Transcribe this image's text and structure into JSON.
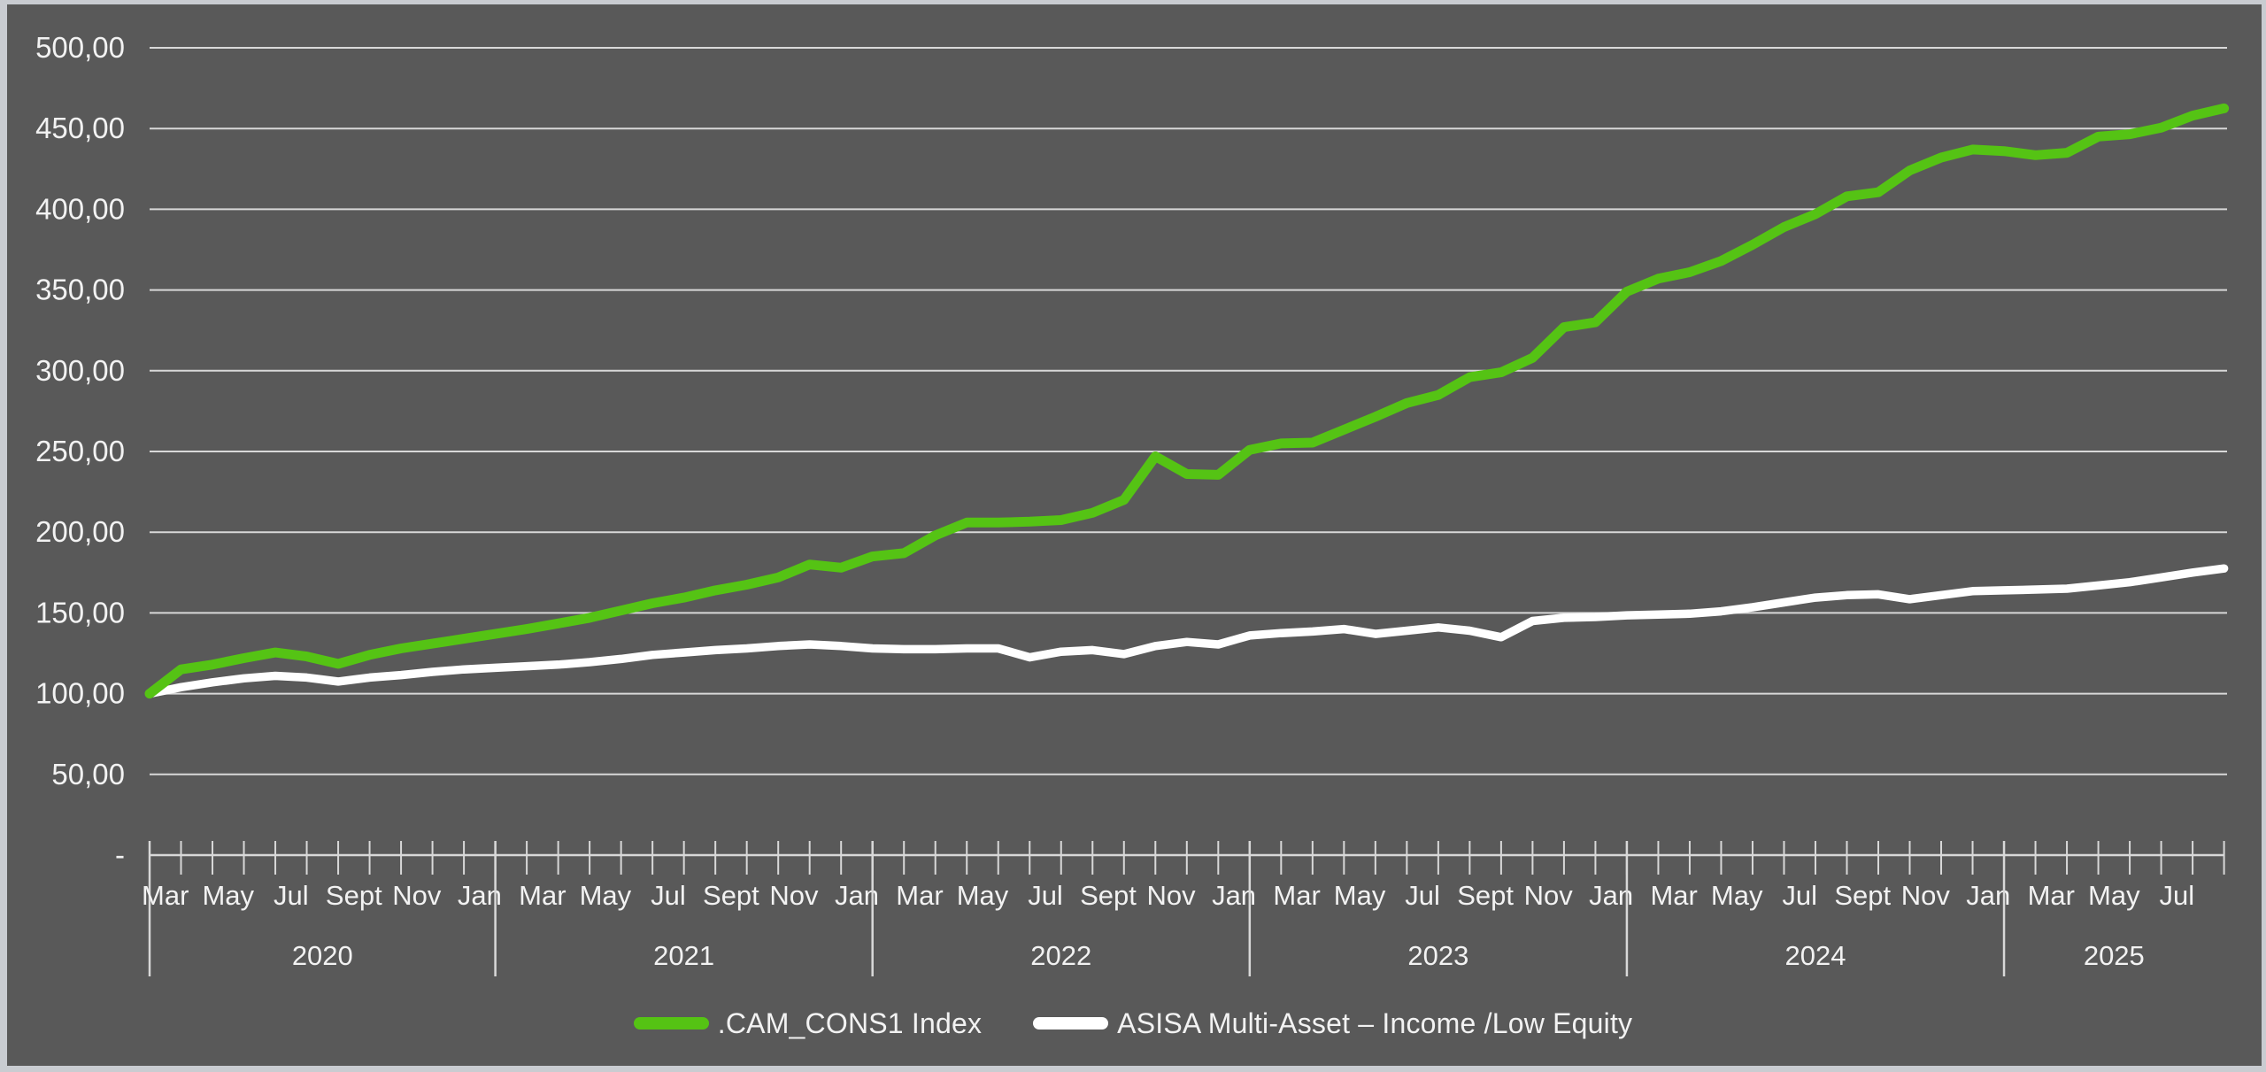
{
  "colors": {
    "background": "#595959",
    "frame": "#c9ccd1",
    "grid": "#d8d8d8",
    "axis": "#d8d8d8",
    "text": "#f2f2f2",
    "green_series": "#55c314",
    "white_series": "#ffffff"
  },
  "chart_data": {
    "type": "line",
    "title": "",
    "grid": true,
    "legend_position": "bottom",
    "y_axis": {
      "min": 0,
      "max": 500,
      "step": 50,
      "tick_labels": [
        "-",
        "50,00",
        "100,00",
        "150,00",
        "200,00",
        "250,00",
        "300,00",
        "350,00",
        "400,00",
        "450,00",
        "500,00"
      ]
    },
    "x_axis": {
      "unit": "month",
      "years": [
        {
          "label": "2020",
          "intervals": 11,
          "month_labels": [
            {
              "t": "Mar",
              "slot": 0
            },
            {
              "t": "May",
              "slot": 2
            },
            {
              "t": "Jul",
              "slot": 4
            },
            {
              "t": "Sept",
              "slot": 6
            },
            {
              "t": "Nov",
              "slot": 8
            },
            {
              "t": "Jan",
              "slot": 10
            }
          ]
        },
        {
          "label": "2021",
          "intervals": 12,
          "month_labels": [
            {
              "t": "Mar",
              "slot": 1
            },
            {
              "t": "May",
              "slot": 3
            },
            {
              "t": "Jul",
              "slot": 5
            },
            {
              "t": "Sept",
              "slot": 7
            },
            {
              "t": "Nov",
              "slot": 9
            },
            {
              "t": "Jan",
              "slot": 11
            }
          ]
        },
        {
          "label": "2022",
          "intervals": 12,
          "month_labels": [
            {
              "t": "Mar",
              "slot": 1
            },
            {
              "t": "May",
              "slot": 3
            },
            {
              "t": "Jul",
              "slot": 5
            },
            {
              "t": "Sept",
              "slot": 7
            },
            {
              "t": "Nov",
              "slot": 9
            },
            {
              "t": "Jan",
              "slot": 11
            }
          ]
        },
        {
          "label": "2023",
          "intervals": 12,
          "month_labels": [
            {
              "t": "Mar",
              "slot": 1
            },
            {
              "t": "May",
              "slot": 3
            },
            {
              "t": "Jul",
              "slot": 5
            },
            {
              "t": "Sept",
              "slot": 7
            },
            {
              "t": "Nov",
              "slot": 9
            },
            {
              "t": "Jan",
              "slot": 11
            }
          ]
        },
        {
          "label": "2024",
          "intervals": 12,
          "month_labels": [
            {
              "t": "Mar",
              "slot": 1
            },
            {
              "t": "May",
              "slot": 3
            },
            {
              "t": "Jul",
              "slot": 5
            },
            {
              "t": "Sept",
              "slot": 7
            },
            {
              "t": "Nov",
              "slot": 9
            },
            {
              "t": "Jan",
              "slot": 11
            }
          ]
        },
        {
          "label": "2025",
          "intervals": 7,
          "month_labels": [
            {
              "t": "Mar",
              "slot": 1
            },
            {
              "t": "May",
              "slot": 3
            },
            {
              "t": "Jul",
              "slot": 5
            }
          ]
        }
      ]
    },
    "series": [
      {
        "name": ".CAM_CONS1 Index",
        "color": "#55c314",
        "start": "Feb 2020",
        "values": [
          100,
          115,
          118,
          122,
          125.5,
          123,
          118.5,
          124,
          128,
          131,
          134,
          137,
          140,
          143.5,
          147,
          151.5,
          156,
          159.5,
          164,
          167.5,
          172,
          180,
          178,
          185,
          187,
          198,
          206,
          206,
          206.5,
          207.5,
          212,
          220,
          247,
          236,
          235.5,
          251,
          255,
          255.5,
          263.5,
          271.5,
          280,
          285,
          296,
          299,
          308,
          327,
          330,
          349,
          357,
          361,
          368,
          378,
          389,
          397,
          408,
          410.5,
          424,
          432,
          437,
          436,
          433.5,
          435,
          445,
          446.5,
          450.5,
          458,
          462.5
        ]
      },
      {
        "name": "ASISA  Multi-Asset – Income /Low Equity",
        "color": "#ffffff",
        "start": "Feb 2020",
        "values": [
          100,
          104,
          107,
          109.5,
          111,
          110,
          107.5,
          110,
          111.5,
          113.5,
          115,
          116,
          117,
          118,
          119.5,
          121.5,
          124,
          125.5,
          127,
          128,
          129.5,
          130.5,
          129.5,
          128,
          127.5,
          127.5,
          128,
          128,
          122.5,
          126,
          127,
          124.5,
          129.5,
          132,
          130.5,
          136,
          137.5,
          138.5,
          140,
          137,
          139,
          141,
          139,
          135,
          145,
          147,
          147.5,
          148.5,
          149,
          149.5,
          151,
          153.5,
          156.5,
          159.5,
          161,
          161.5,
          158.5,
          161,
          163.5,
          164,
          164.5,
          165,
          167,
          169,
          172,
          175,
          177.5
        ]
      }
    ]
  }
}
